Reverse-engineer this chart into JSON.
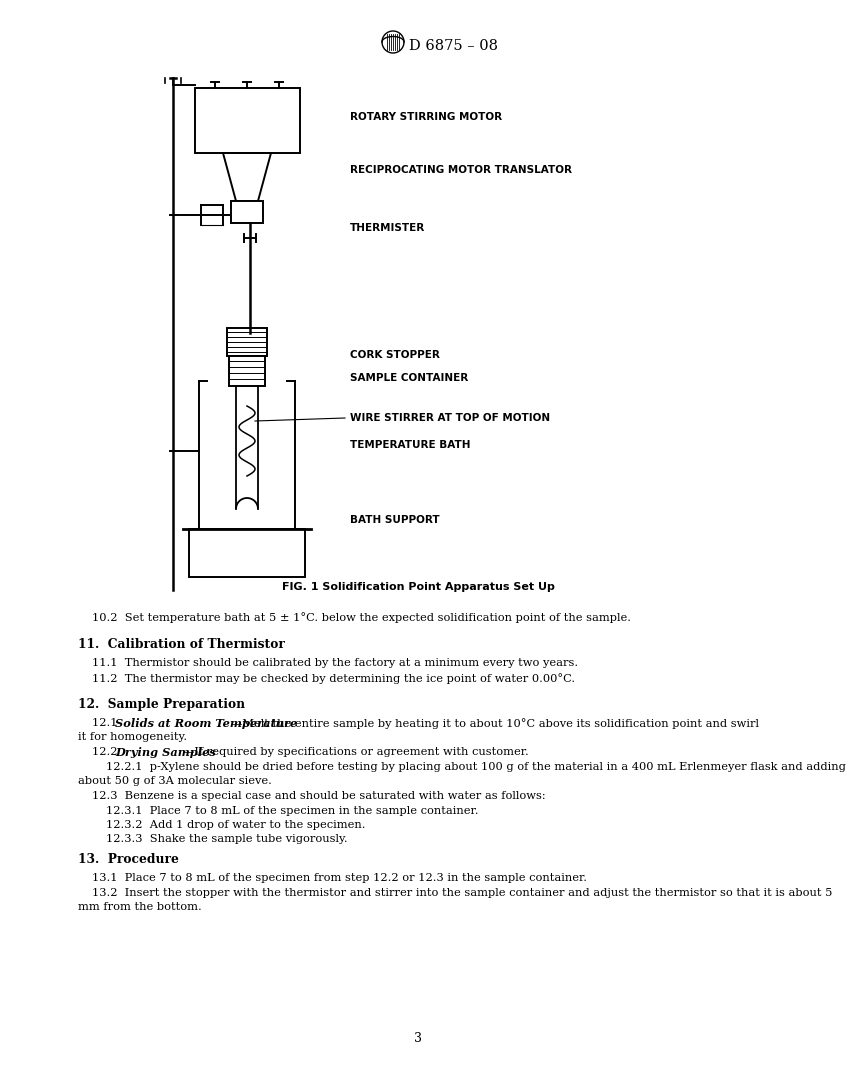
{
  "title": "D 6875 – 08",
  "fig_caption": "FIG. 1 Solidification Point Apparatus Set Up",
  "page_number": "3",
  "labels": {
    "rotary_stirring_motor": "ROTARY STIRRING MOTOR",
    "reciprocating_motor_translator": "RECIPROCATING MOTOR TRANSLATOR",
    "thermister": "THERMISTER",
    "cork_stopper": "CORK STOPPER",
    "sample_container": "SAMPLE CONTAINER",
    "wire_stirrer": "WIRE STIRRER AT TOP OF MOTION",
    "temperature_bath": "TEMPERATURE BATH",
    "bath_support": "BATH SUPPORT"
  },
  "section_10_2": "10.2  Set temperature bath at 5 ± 1°C. below the expected solidification point of the sample.",
  "section_11_title": "11.  Calibration of Thermistor",
  "section_11_1": "11.1  Thermistor should be calibrated by the factory at a minimum every two years.",
  "section_11_2": "11.2  The thermistor may be checked by determining the ice point of water 0.00°C.",
  "section_12_title": "12.  Sample Preparation",
  "section_13_title": "13.  Procedure",
  "section_13_1": "13.1  Place 7 to 8 mL of the specimen from step 12.2 or 12.3 in the sample container.",
  "section_13_2_line1": "13.2  Insert the stopper with the thermistor and stirrer into the sample container and adjust the thermistor so that it is about 5",
  "section_13_2_line2": "mm from the bottom.",
  "page_number_val": "3",
  "text_color": "#000000",
  "background_color": "#ffffff"
}
